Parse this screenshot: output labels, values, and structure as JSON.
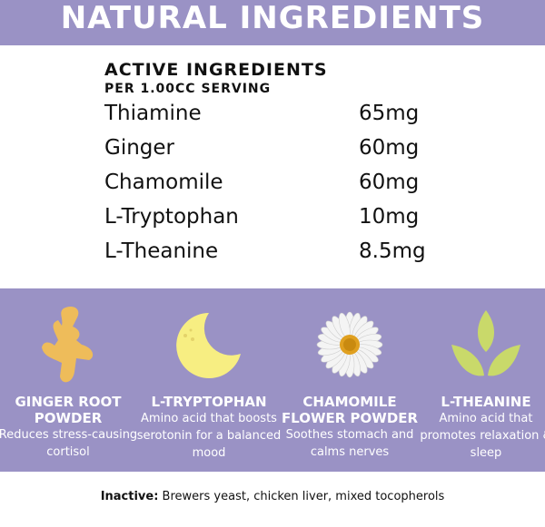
{
  "header": {
    "title": "NATURAL INGREDIENTS"
  },
  "table": {
    "title": "ACTIVE INGREDIENTS",
    "subtitle": "PER 1.00CC SERVING",
    "rows": [
      {
        "name": "Thiamine",
        "amount": "65mg"
      },
      {
        "name": "Ginger",
        "amount": "60mg"
      },
      {
        "name": "Chamomile",
        "amount": "60mg"
      },
      {
        "name": "L-Tryptophan",
        "amount": "10mg"
      },
      {
        "name": "L-Theanine",
        "amount": "8.5mg"
      }
    ]
  },
  "features": [
    {
      "icon": "ginger-root-icon",
      "name": "GINGER ROOT POWDER",
      "desc": "Reduces stress-causing cortisol"
    },
    {
      "icon": "moon-icon",
      "name": "L-TRYPTOPHAN",
      "desc": "Amino acid that boosts serotonin for a balanced mood"
    },
    {
      "icon": "daisy-flower-icon",
      "name": "CHAMOMILE FLOWER POWDER",
      "desc": "Soothes stomach and calms nerves"
    },
    {
      "icon": "leaves-icon",
      "name": "L-THEANINE",
      "desc": "Amino acid that promotes relaxation & sleep"
    }
  ],
  "footer": {
    "label": "Inactive:",
    "text": " Brewers yeast, chicken liver, mixed tocopherols"
  },
  "colors": {
    "band": "#9a92c5",
    "ginger": "#eebc5a",
    "moon": "#f7ee82",
    "leaf": "#c9d96a"
  }
}
